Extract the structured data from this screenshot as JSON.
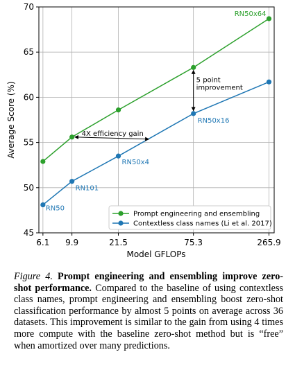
{
  "chart_data": {
    "type": "line",
    "xlabel": "Model GFLOPs",
    "ylabel": "Average Score (%)",
    "x_ticks": [
      "6.1",
      "9.9",
      "21.5",
      "75.3",
      "265.9"
    ],
    "y_ticks": [
      "45",
      "50",
      "55",
      "60",
      "65",
      "70"
    ],
    "ylim": [
      45,
      70
    ],
    "grid": true,
    "legend_position": "lower-right",
    "categories": [
      "6.1",
      "9.9",
      "21.5",
      "75.3",
      "265.9"
    ],
    "point_labels": [
      "RN50",
      "RN101",
      "RN50x4",
      "RN50x16",
      "RN50x64"
    ],
    "series": [
      {
        "name": "Prompt engineering and ensembling",
        "color": "#2ca02c",
        "values": [
          52.9,
          55.6,
          58.6,
          63.3,
          68.7
        ],
        "show_labels": [
          false,
          false,
          false,
          false,
          true
        ]
      },
      {
        "name": "Contextless class names (Li et al. 2017)",
        "color": "#1f77b4",
        "values": [
          48.1,
          50.7,
          53.5,
          58.2,
          61.7
        ],
        "show_labels": [
          true,
          true,
          true,
          true,
          false
        ]
      }
    ],
    "annotations": {
      "efficiency": "4X efficiency gain",
      "improvement_line1": "5 point",
      "improvement_line2": "improvement"
    }
  },
  "caption": {
    "figure_label": "Figure 4.",
    "title": "Prompt engineering and ensembling improve zero-shot performance.",
    "text": "Compared to the baseline of using contextless class names, prompt engineering and ensembling boost zero-shot classification performance by almost 5 points on average across 36 datasets. This improvement is similar to the gain from using 4 times more compute with the baseline zero-shot method but is “free” when amortized over many predictions."
  }
}
